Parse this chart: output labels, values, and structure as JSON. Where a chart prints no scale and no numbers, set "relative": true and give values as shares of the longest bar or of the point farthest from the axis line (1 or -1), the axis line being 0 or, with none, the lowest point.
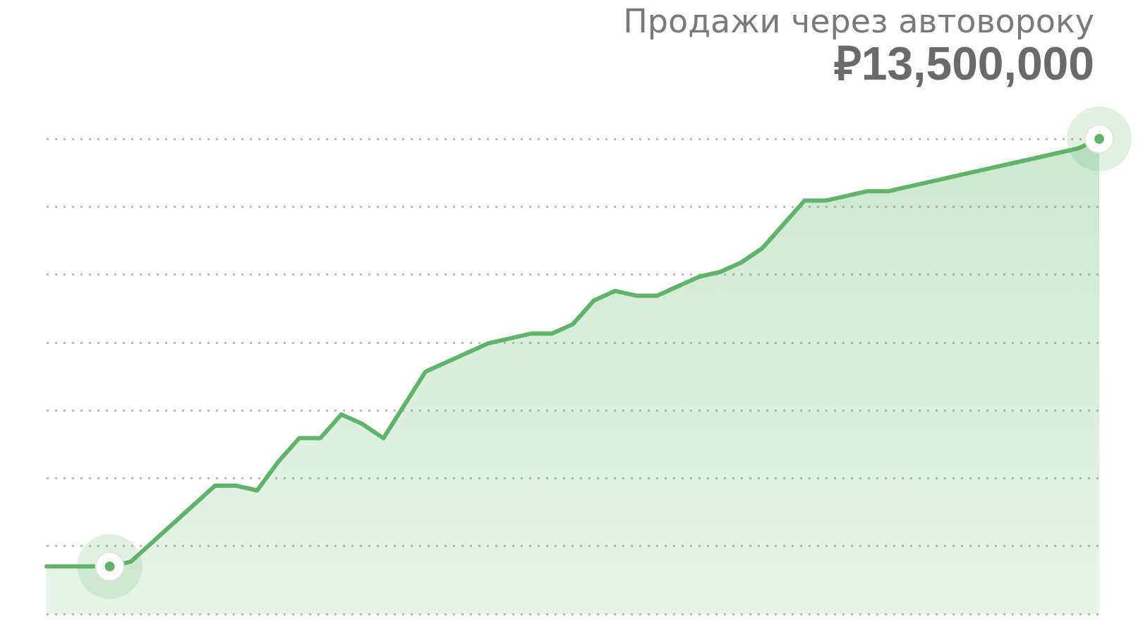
{
  "chart_data": {
    "type": "area",
    "title": "Продажи через автовороку",
    "subtitle": "₽13,500,000",
    "relative": true,
    "grid": "y",
    "marker": "none",
    "line_style": "solid",
    "categories": [
      null,
      null,
      null,
      null,
      null,
      null,
      null,
      null,
      null,
      null,
      null,
      null,
      null,
      null,
      null,
      null,
      null,
      null,
      null,
      null,
      null,
      null,
      null,
      null,
      null,
      null,
      null,
      null,
      null,
      null,
      null,
      null,
      null,
      null,
      null,
      null,
      null,
      null,
      null,
      null,
      null,
      null,
      null,
      null,
      null,
      null,
      null,
      null,
      null,
      null,
      null
    ],
    "series": [
      {
        "color": "#5fb36b",
        "values": [
          0.1,
          0.1,
          0.1,
          0.1,
          0.11,
          0.15,
          0.19,
          0.23,
          0.27,
          0.27,
          0.26,
          0.32,
          0.37,
          0.37,
          0.42,
          0.4,
          0.37,
          0.44,
          0.51,
          0.53,
          0.55,
          0.57,
          0.58,
          0.59,
          0.59,
          0.61,
          0.66,
          0.68,
          0.67,
          0.67,
          0.69,
          0.71,
          0.72,
          0.74,
          0.77,
          0.82,
          0.87,
          0.87,
          0.88,
          0.89,
          0.89,
          0.9,
          0.91,
          0.92,
          0.93,
          0.94,
          0.95,
          0.96,
          0.97,
          0.98,
          1
        ]
      }
    ]
  }
}
